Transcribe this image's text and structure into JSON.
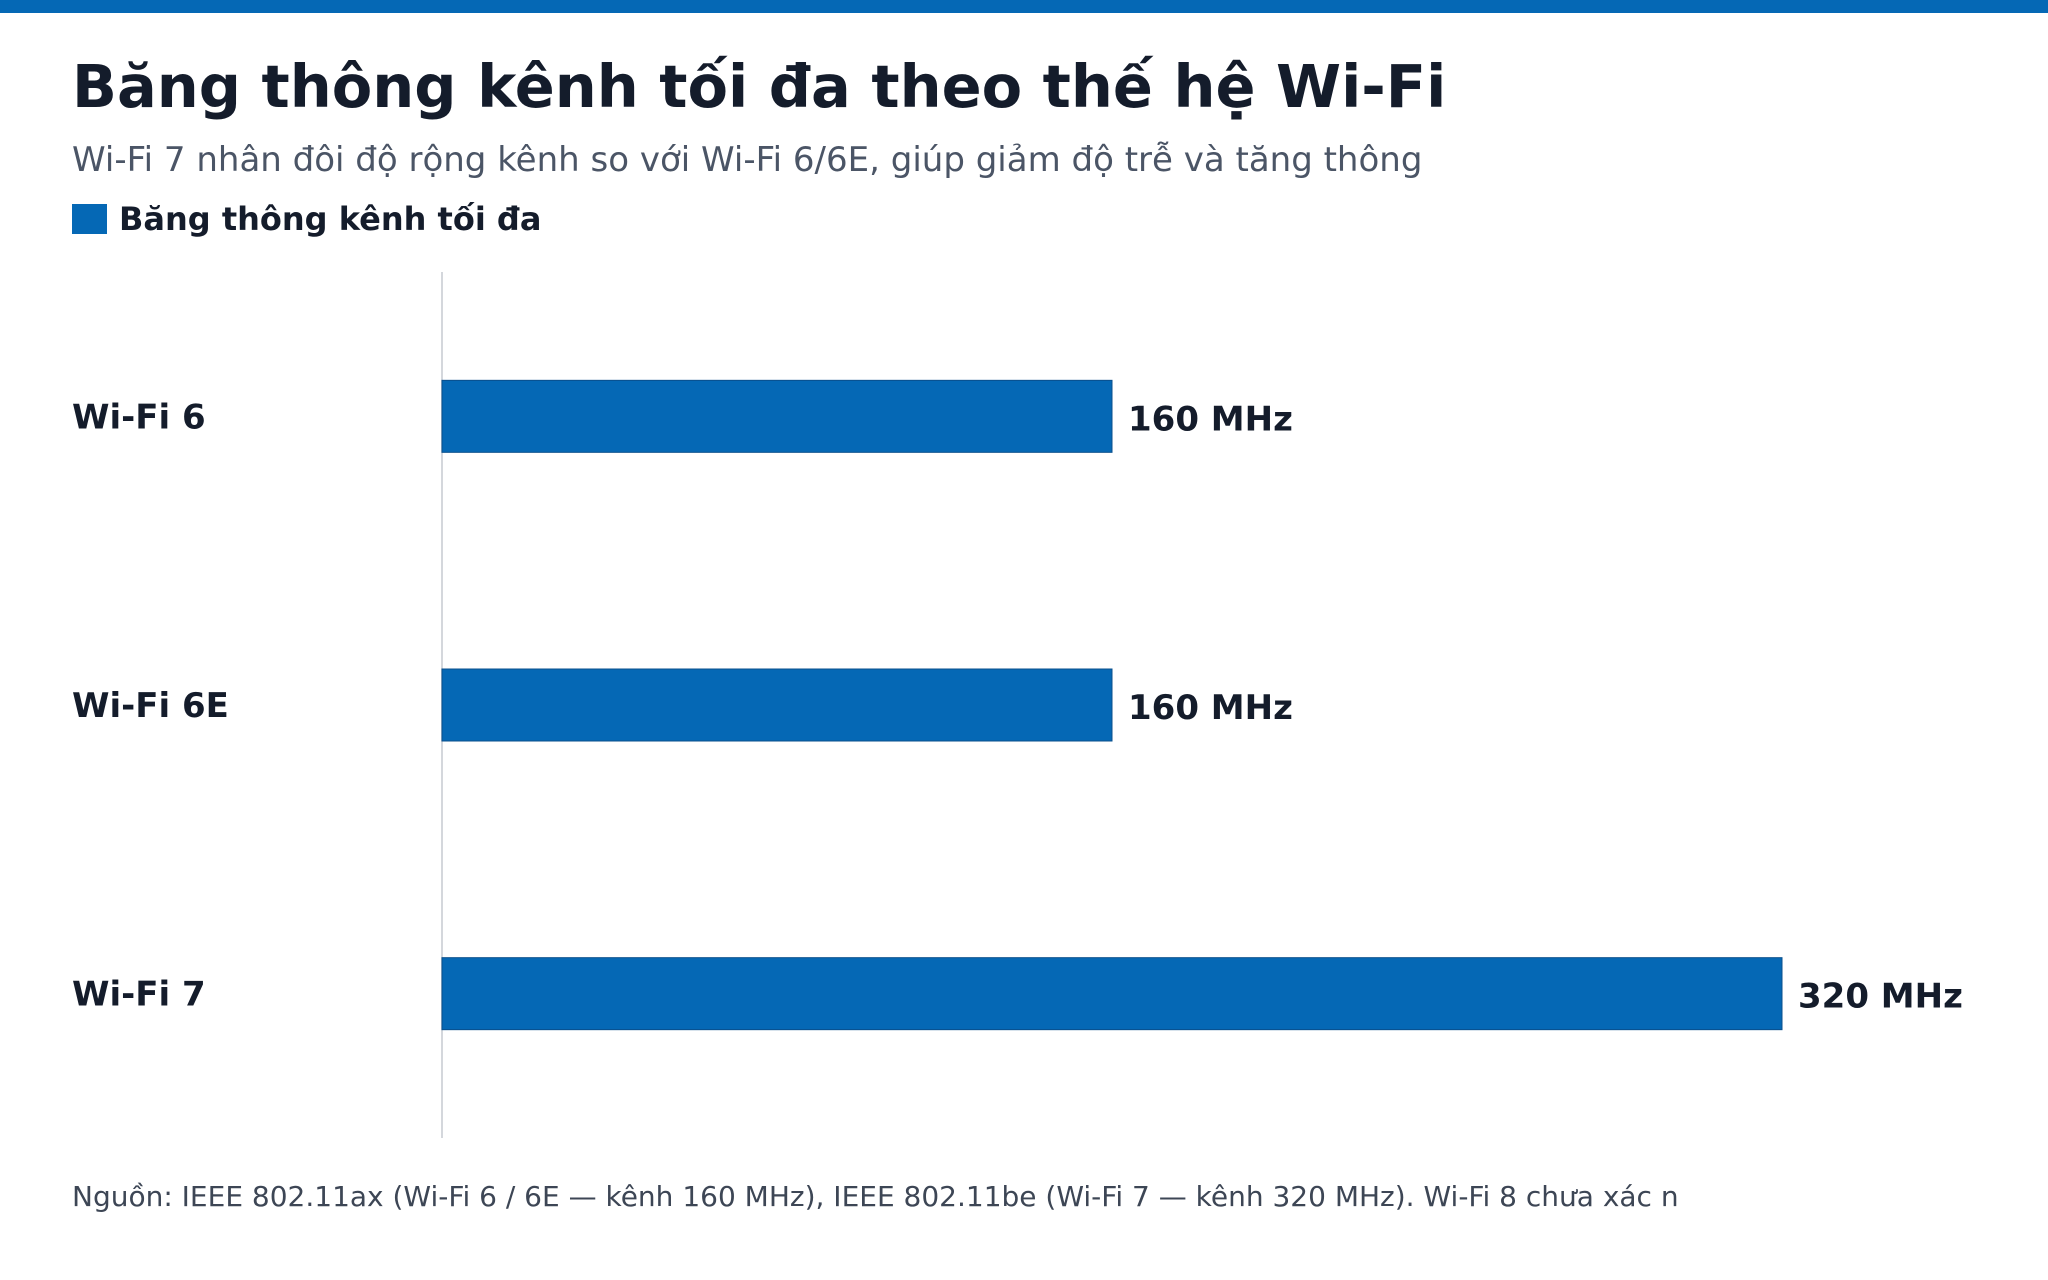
{
  "chart_data": {
    "type": "bar",
    "orientation": "horizontal",
    "title": "Băng thông kênh tối đa theo thế hệ Wi-Fi",
    "subtitle": "Wi-Fi 7 nhân đôi độ rộng kênh so với Wi-Fi 6/6E, giúp giảm độ trễ và tăng thông",
    "legend": {
      "position": "top-left"
    },
    "categories": [
      "Wi-Fi 6",
      "Wi-Fi 6E",
      "Wi-Fi 7"
    ],
    "series": [
      {
        "name": "Băng thông kênh tối đa",
        "color": "#0568b5",
        "values": [
          160,
          160,
          320
        ],
        "labels": [
          "160 MHz",
          "160 MHz",
          "320 MHz"
        ]
      }
    ],
    "xlim": [
      0,
      320
    ],
    "grid": false,
    "footer": "Nguồn: IEEE 802.11ax (Wi-Fi 6 / 6E — kênh 160 MHz), IEEE 802.11be (Wi-Fi 7 — kênh 320 MHz). Wi-Fi 8 chưa xác n"
  }
}
